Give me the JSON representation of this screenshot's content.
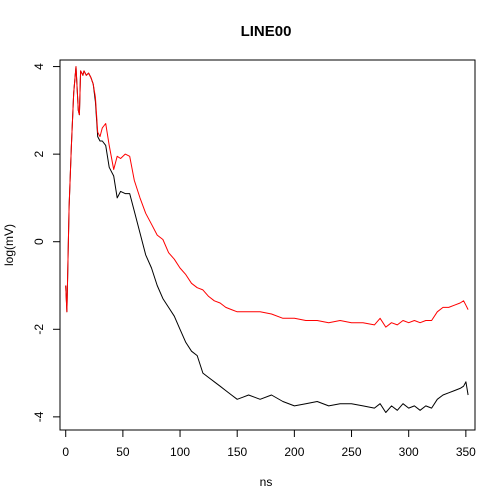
{
  "chart_data": {
    "type": "line",
    "title": "LINE00",
    "xlabel": "ns",
    "ylabel": "log(mV)",
    "xlim": [
      -5,
      358
    ],
    "ylim": [
      -4.3,
      4.15
    ],
    "x_ticks": [
      0,
      50,
      100,
      150,
      200,
      250,
      300,
      350
    ],
    "y_ticks": [
      -4,
      -2,
      0,
      2,
      4
    ],
    "x_tick_labels": [
      "0",
      "50",
      "100",
      "150",
      "200",
      "250",
      "300",
      "350"
    ],
    "y_tick_labels": [
      "-4",
      "-2",
      "0",
      "2",
      "4"
    ],
    "grid": false,
    "legend": "none",
    "series": [
      {
        "color": "#000000",
        "x": [
          0,
          1,
          3,
          5,
          7,
          9,
          11,
          12,
          13,
          15,
          16,
          18,
          20,
          22,
          24,
          26,
          28,
          30,
          32,
          35,
          38,
          42,
          45,
          48,
          52,
          56,
          60,
          65,
          70,
          75,
          80,
          85,
          90,
          95,
          100,
          105,
          110,
          115,
          120,
          125,
          130,
          135,
          140,
          145,
          150,
          155,
          160,
          170,
          180,
          190,
          200,
          210,
          220,
          230,
          240,
          250,
          260,
          270,
          275,
          280,
          285,
          290,
          295,
          300,
          305,
          310,
          315,
          320,
          325,
          330,
          335,
          340,
          345,
          348,
          350,
          352
        ],
        "y": [
          -1.0,
          -1.6,
          0.8,
          2.2,
          3.4,
          4.0,
          3.0,
          2.9,
          3.9,
          3.8,
          3.9,
          3.8,
          3.85,
          3.75,
          3.6,
          3.2,
          2.4,
          2.3,
          2.3,
          2.2,
          1.7,
          1.5,
          1.0,
          1.15,
          1.1,
          1.1,
          0.7,
          0.2,
          -0.3,
          -0.6,
          -1.0,
          -1.3,
          -1.5,
          -1.7,
          -2.0,
          -2.3,
          -2.5,
          -2.6,
          -3.0,
          -3.1,
          -3.2,
          -3.3,
          -3.4,
          -3.5,
          -3.6,
          -3.55,
          -3.5,
          -3.6,
          -3.5,
          -3.65,
          -3.75,
          -3.7,
          -3.65,
          -3.75,
          -3.7,
          -3.7,
          -3.75,
          -3.8,
          -3.7,
          -3.9,
          -3.75,
          -3.85,
          -3.7,
          -3.8,
          -3.75,
          -3.85,
          -3.75,
          -3.8,
          -3.6,
          -3.5,
          -3.45,
          -3.4,
          -3.35,
          -3.3,
          -3.2,
          -3.5
        ]
      },
      {
        "color": "#ff0000",
        "x": [
          0,
          1,
          3,
          5,
          7,
          9,
          11,
          12,
          13,
          15,
          16,
          18,
          20,
          22,
          24,
          26,
          28,
          30,
          32,
          35,
          38,
          42,
          45,
          48,
          52,
          56,
          60,
          65,
          70,
          75,
          80,
          85,
          90,
          95,
          100,
          105,
          110,
          115,
          120,
          125,
          130,
          135,
          140,
          145,
          150,
          155,
          160,
          170,
          180,
          190,
          200,
          210,
          220,
          230,
          240,
          250,
          260,
          270,
          275,
          280,
          285,
          290,
          295,
          300,
          305,
          310,
          315,
          320,
          325,
          330,
          335,
          340,
          345,
          348,
          350,
          352
        ],
        "y": [
          -1.0,
          -1.6,
          0.8,
          2.2,
          3.4,
          4.0,
          3.0,
          2.9,
          3.9,
          3.8,
          3.9,
          3.8,
          3.85,
          3.75,
          3.6,
          3.3,
          2.5,
          2.4,
          2.6,
          2.7,
          2.2,
          1.65,
          1.95,
          1.9,
          2.0,
          1.95,
          1.4,
          1.0,
          0.65,
          0.4,
          0.15,
          0.05,
          -0.25,
          -0.4,
          -0.6,
          -0.75,
          -0.95,
          -1.05,
          -1.1,
          -1.25,
          -1.35,
          -1.4,
          -1.5,
          -1.55,
          -1.6,
          -1.6,
          -1.6,
          -1.6,
          -1.65,
          -1.75,
          -1.75,
          -1.8,
          -1.8,
          -1.85,
          -1.8,
          -1.85,
          -1.85,
          -1.9,
          -1.75,
          -1.95,
          -1.85,
          -1.9,
          -1.8,
          -1.85,
          -1.8,
          -1.85,
          -1.8,
          -1.8,
          -1.6,
          -1.5,
          -1.5,
          -1.45,
          -1.4,
          -1.35,
          -1.45,
          -1.55
        ]
      }
    ]
  }
}
